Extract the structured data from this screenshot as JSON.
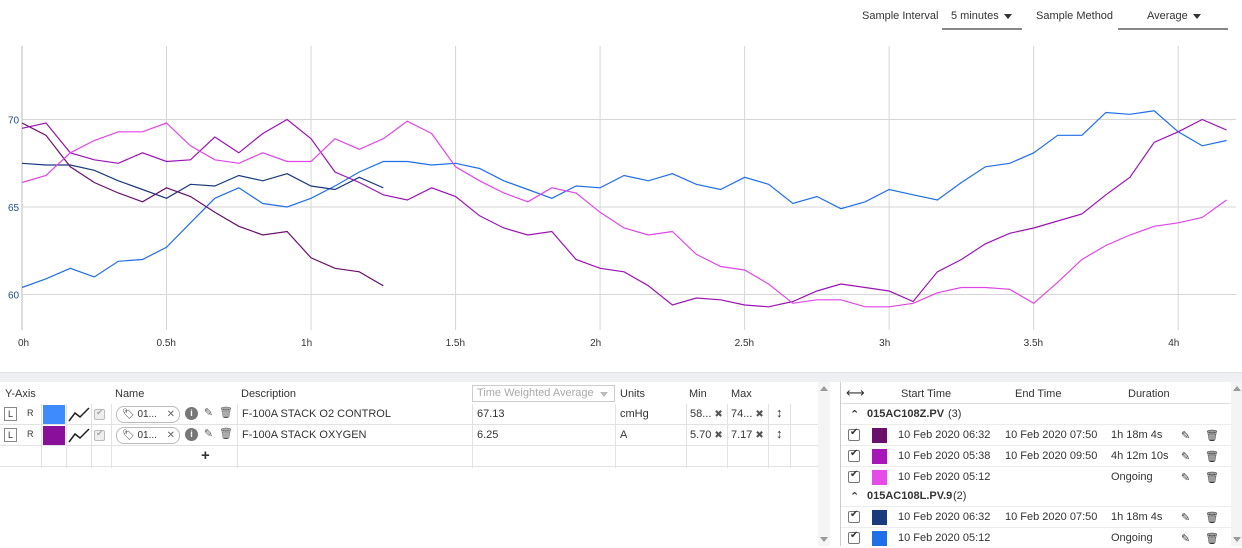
{
  "controls": {
    "sample_interval_label": "Sample Interval",
    "sample_interval_value": "5 minutes",
    "sample_method_label": "Sample Method",
    "sample_method_value": "Average"
  },
  "chart_data": {
    "type": "line",
    "x_ticks": [
      "0h",
      "0.5h",
      "1h",
      "1.5h",
      "2h",
      "2.5h",
      "3h",
      "3.5h",
      "4h"
    ],
    "y_ticks": [
      "70",
      "65",
      "60"
    ],
    "xlim": [
      0,
      4.2
    ],
    "ylim": [
      58.2,
      74.2
    ],
    "grid": true,
    "series": [
      {
        "color": "#1f6fe8",
        "points": [
          [
            0,
            60.4
          ],
          [
            0.083,
            60.9
          ],
          [
            0.167,
            61.5
          ],
          [
            0.25,
            61.0
          ],
          [
            0.333,
            61.9
          ],
          [
            0.417,
            62.0
          ],
          [
            0.5,
            62.7
          ],
          [
            0.583,
            64.1
          ],
          [
            0.667,
            65.5
          ],
          [
            0.75,
            66.1
          ],
          [
            0.833,
            65.2
          ],
          [
            0.917,
            65.0
          ],
          [
            1.0,
            65.5
          ],
          [
            1.083,
            66.2
          ],
          [
            1.167,
            67.0
          ],
          [
            1.25,
            67.6
          ],
          [
            1.333,
            67.6
          ],
          [
            1.417,
            67.4
          ],
          [
            1.5,
            67.5
          ],
          [
            1.583,
            67.2
          ],
          [
            1.667,
            66.5
          ],
          [
            1.75,
            66.0
          ],
          [
            1.833,
            65.5
          ],
          [
            1.917,
            66.2
          ],
          [
            2.0,
            66.1
          ],
          [
            2.083,
            66.8
          ],
          [
            2.167,
            66.5
          ],
          [
            2.25,
            66.9
          ],
          [
            2.333,
            66.3
          ],
          [
            2.417,
            66.0
          ],
          [
            2.5,
            66.7
          ],
          [
            2.583,
            66.3
          ],
          [
            2.667,
            65.2
          ],
          [
            2.75,
            65.6
          ],
          [
            2.833,
            64.9
          ],
          [
            2.917,
            65.3
          ],
          [
            3.0,
            66.0
          ],
          [
            3.083,
            65.7
          ],
          [
            3.167,
            65.4
          ],
          [
            3.25,
            66.4
          ],
          [
            3.333,
            67.3
          ],
          [
            3.417,
            67.5
          ],
          [
            3.5,
            68.1
          ],
          [
            3.583,
            69.1
          ],
          [
            3.667,
            69.1
          ],
          [
            3.75,
            70.4
          ],
          [
            3.833,
            70.3
          ],
          [
            3.917,
            70.5
          ],
          [
            4.0,
            69.3
          ],
          [
            4.083,
            68.5
          ],
          [
            4.167,
            68.8
          ]
        ]
      },
      {
        "color": "#1a3a7e",
        "points": [
          [
            0,
            67.5
          ],
          [
            0.083,
            67.4
          ],
          [
            0.167,
            67.4
          ],
          [
            0.25,
            67.1
          ],
          [
            0.333,
            66.5
          ],
          [
            0.417,
            66.0
          ],
          [
            0.5,
            65.5
          ],
          [
            0.583,
            66.3
          ],
          [
            0.667,
            66.2
          ],
          [
            0.75,
            66.8
          ],
          [
            0.833,
            66.5
          ],
          [
            0.917,
            66.9
          ],
          [
            1.0,
            66.2
          ],
          [
            1.083,
            66.0
          ],
          [
            1.167,
            66.7
          ],
          [
            1.25,
            66.1
          ]
        ]
      },
      {
        "color": "#6a0f6a",
        "points": [
          [
            0,
            69.8
          ],
          [
            0.083,
            69.1
          ],
          [
            0.167,
            67.3
          ],
          [
            0.25,
            66.4
          ],
          [
            0.333,
            65.8
          ],
          [
            0.417,
            65.3
          ],
          [
            0.5,
            66.1
          ],
          [
            0.583,
            65.6
          ],
          [
            0.667,
            64.7
          ],
          [
            0.75,
            63.9
          ],
          [
            0.833,
            63.4
          ],
          [
            0.917,
            63.6
          ],
          [
            1.0,
            62.1
          ],
          [
            1.083,
            61.5
          ],
          [
            1.167,
            61.3
          ],
          [
            1.25,
            60.5
          ]
        ]
      },
      {
        "color": "#9b13b5",
        "points": [
          [
            0,
            69.5
          ],
          [
            0.083,
            69.8
          ],
          [
            0.167,
            68.1
          ],
          [
            0.25,
            67.7
          ],
          [
            0.333,
            67.5
          ],
          [
            0.417,
            68.1
          ],
          [
            0.5,
            67.6
          ],
          [
            0.583,
            67.7
          ],
          [
            0.667,
            69.0
          ],
          [
            0.75,
            68.1
          ],
          [
            0.833,
            69.2
          ],
          [
            0.917,
            70.0
          ],
          [
            1.0,
            68.9
          ],
          [
            1.083,
            67.0
          ],
          [
            1.167,
            66.4
          ],
          [
            1.25,
            65.7
          ],
          [
            1.333,
            65.4
          ],
          [
            1.417,
            66.1
          ],
          [
            1.5,
            65.6
          ],
          [
            1.583,
            64.5
          ],
          [
            1.667,
            63.8
          ],
          [
            1.75,
            63.4
          ],
          [
            1.833,
            63.6
          ],
          [
            1.917,
            62.0
          ],
          [
            2.0,
            61.5
          ],
          [
            2.083,
            61.3
          ],
          [
            2.167,
            60.5
          ],
          [
            2.25,
            59.4
          ],
          [
            2.333,
            59.8
          ],
          [
            2.417,
            59.7
          ],
          [
            2.5,
            59.4
          ],
          [
            2.583,
            59.3
          ],
          [
            2.667,
            59.6
          ],
          [
            2.75,
            60.2
          ],
          [
            2.833,
            60.6
          ],
          [
            2.917,
            60.4
          ],
          [
            3.0,
            60.2
          ],
          [
            3.083,
            59.6
          ],
          [
            3.167,
            61.3
          ],
          [
            3.25,
            62.0
          ],
          [
            3.333,
            62.9
          ],
          [
            3.417,
            63.5
          ],
          [
            3.5,
            63.8
          ],
          [
            3.583,
            64.2
          ],
          [
            3.667,
            64.6
          ],
          [
            3.75,
            65.7
          ],
          [
            3.833,
            66.7
          ],
          [
            3.917,
            68.7
          ],
          [
            4.0,
            69.3
          ],
          [
            4.083,
            70.0
          ],
          [
            4.167,
            69.4
          ]
        ]
      },
      {
        "color": "#e046e6",
        "points": [
          [
            0,
            66.4
          ],
          [
            0.083,
            66.8
          ],
          [
            0.167,
            68.1
          ],
          [
            0.25,
            68.8
          ],
          [
            0.333,
            69.3
          ],
          [
            0.417,
            69.3
          ],
          [
            0.5,
            69.8
          ],
          [
            0.583,
            68.5
          ],
          [
            0.667,
            67.7
          ],
          [
            0.75,
            67.5
          ],
          [
            0.833,
            68.1
          ],
          [
            0.917,
            67.6
          ],
          [
            1.0,
            67.6
          ],
          [
            1.083,
            68.9
          ],
          [
            1.167,
            68.3
          ],
          [
            1.25,
            68.9
          ],
          [
            1.333,
            69.9
          ],
          [
            1.417,
            69.2
          ],
          [
            1.5,
            67.3
          ],
          [
            1.583,
            66.5
          ],
          [
            1.667,
            65.8
          ],
          [
            1.75,
            65.3
          ],
          [
            1.833,
            66.1
          ],
          [
            1.917,
            65.8
          ],
          [
            2.0,
            64.7
          ],
          [
            2.083,
            63.8
          ],
          [
            2.167,
            63.4
          ],
          [
            2.25,
            63.6
          ],
          [
            2.333,
            62.3
          ],
          [
            2.417,
            61.6
          ],
          [
            2.5,
            61.4
          ],
          [
            2.583,
            60.6
          ],
          [
            2.667,
            59.5
          ],
          [
            2.75,
            59.7
          ],
          [
            2.833,
            59.7
          ],
          [
            2.917,
            59.3
          ],
          [
            3.0,
            59.3
          ],
          [
            3.083,
            59.5
          ],
          [
            3.167,
            60.1
          ],
          [
            3.25,
            60.4
          ],
          [
            3.333,
            60.4
          ],
          [
            3.417,
            60.3
          ],
          [
            3.5,
            59.5
          ],
          [
            3.583,
            60.7
          ],
          [
            3.667,
            62.0
          ],
          [
            3.75,
            62.8
          ],
          [
            3.833,
            63.4
          ],
          [
            3.917,
            63.9
          ],
          [
            4.0,
            64.1
          ],
          [
            4.083,
            64.4
          ],
          [
            4.167,
            65.4
          ]
        ]
      }
    ]
  },
  "series_panel": {
    "headers": {
      "yaxis": "Y-Axis",
      "name": "Name",
      "description": "Description",
      "stat": "Time Weighted Average",
      "units": "Units",
      "min": "Min",
      "max": "Max"
    },
    "rows": [
      {
        "l": "L",
        "r": "R",
        "color": "#3d8bfd",
        "tag": "01...",
        "description": "F-100A STACK O2 CONTROL",
        "value": "67.13",
        "units": "cmHg",
        "min": "58...",
        "max": "74..."
      },
      {
        "l": "L",
        "r": "R",
        "color": "#8a0f9a",
        "tag": "01...",
        "description": "F-100A STACK OXYGEN",
        "value": "6.25",
        "units": "A",
        "min": "5.70",
        "max": "7.17"
      }
    ],
    "add_label": "+"
  },
  "capsules": {
    "headers": {
      "start": "Start Time",
      "end": "End Time",
      "duration": "Duration"
    },
    "groups": [
      {
        "name": "015AC108Z.PV",
        "count": "(3)",
        "rows": [
          {
            "color": "#6a0f6a",
            "start": "10 Feb 2020 06:32",
            "end": "10 Feb 2020 07:50",
            "duration": "1h 18m 4s"
          },
          {
            "color": "#a517b8",
            "start": "10 Feb 2020 05:38",
            "end": "10 Feb 2020 09:50",
            "duration": "4h 12m 10s"
          },
          {
            "color": "#e44be9",
            "start": "10 Feb 2020 05:12",
            "end": "",
            "duration": "Ongoing"
          }
        ]
      },
      {
        "name": "015AC108L.PV.9",
        "count": "(2)",
        "rows": [
          {
            "color": "#1a3a7e",
            "start": "10 Feb 2020 06:32",
            "end": "10 Feb 2020 07:50",
            "duration": "1h 18m 4s"
          },
          {
            "color": "#1f6fe8",
            "start": "10 Feb 2020 05:12",
            "end": "",
            "duration": "Ongoing"
          }
        ]
      }
    ]
  }
}
